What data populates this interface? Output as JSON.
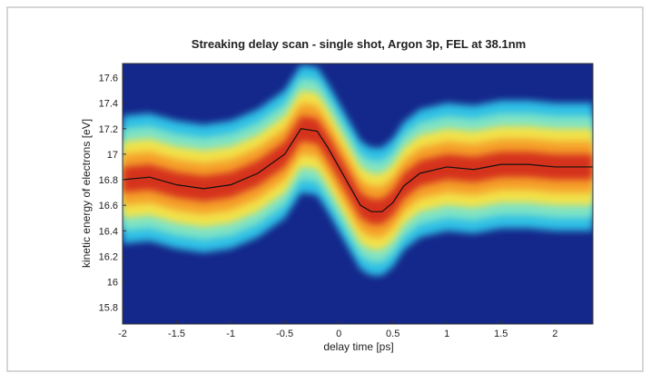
{
  "chart_data": {
    "type": "line",
    "title": "Streaking delay scan - single shot, Argon 3p, FEL at 38.1nm",
    "x_label": "delay time [ps]",
    "y_label": "kinetic energy of electrons [eV]",
    "x": [
      -2,
      -1.75,
      -1.5,
      -1.25,
      -1,
      -0.75,
      -0.5,
      -0.35,
      -0.2,
      -0.1,
      0,
      0.1,
      0.2,
      0.3,
      0.4,
      0.5,
      0.6,
      0.75,
      1,
      1.25,
      1.5,
      1.75,
      2,
      2.35
    ],
    "series": [
      {
        "color": "#111111",
        "values": [
          16.8,
          16.82,
          16.76,
          16.73,
          16.76,
          16.85,
          17.0,
          17.2,
          17.18,
          17.05,
          16.9,
          16.75,
          16.6,
          16.55,
          16.55,
          16.62,
          16.75,
          16.85,
          16.9,
          16.88,
          16.92,
          16.92,
          16.9,
          16.9
        ]
      }
    ],
    "xlim": [
      -2,
      2.35
    ],
    "ylim": [
      15.67,
      17.71
    ],
    "xticks": [
      -2,
      -1.5,
      -1,
      -0.5,
      0,
      0.5,
      1,
      1.5,
      2
    ],
    "yticks": [
      15.8,
      16,
      16.2,
      16.4,
      16.6,
      16.8,
      17,
      17.2,
      17.4,
      17.6
    ]
  }
}
